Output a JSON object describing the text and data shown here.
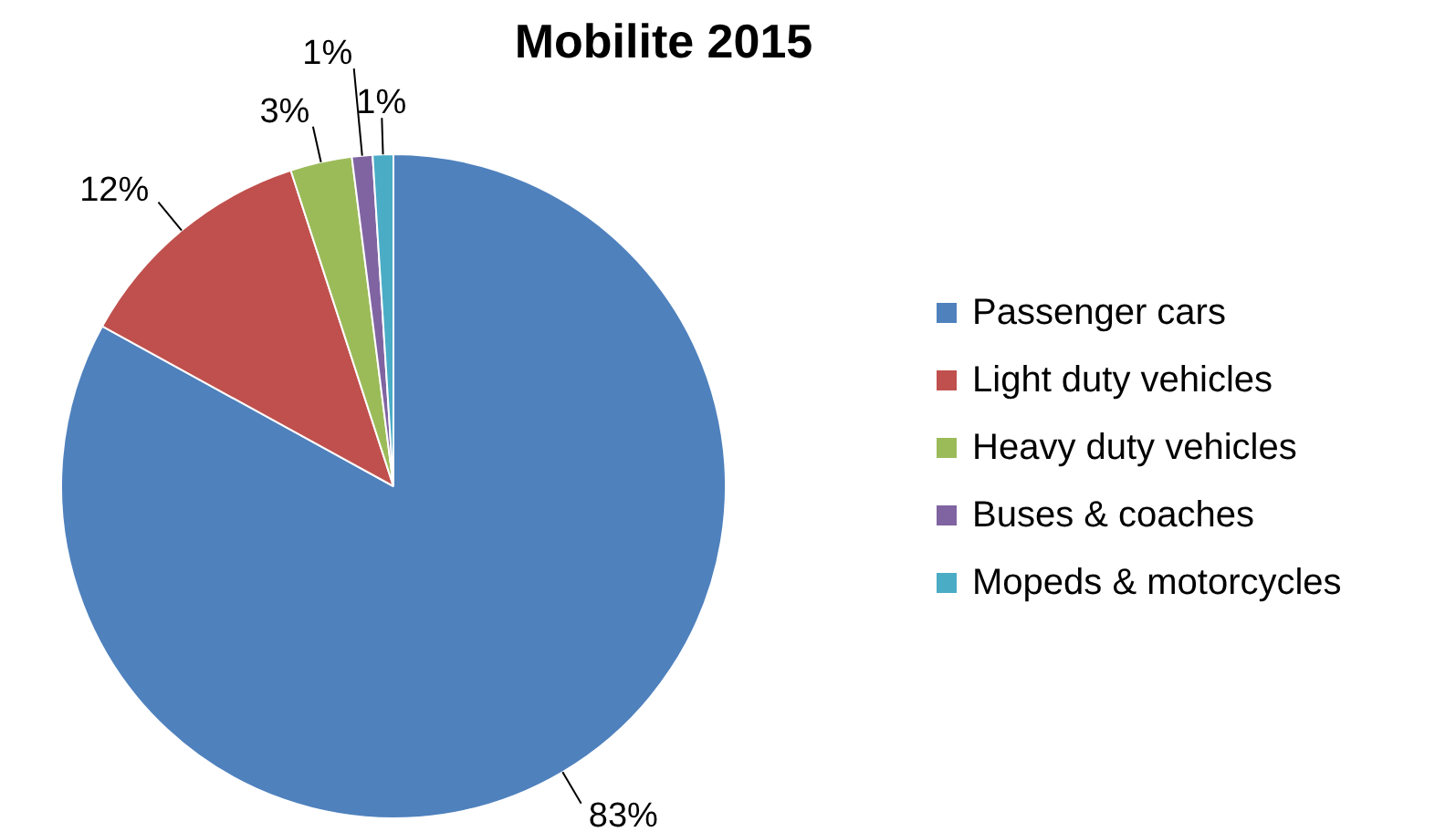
{
  "chart_data": {
    "type": "pie",
    "title": "Mobilite 2015",
    "categories": [
      "Passenger cars",
      "Light duty vehicles",
      "Heavy duty vehicles",
      "Buses & coaches",
      "Mopeds & motorcycles"
    ],
    "values": [
      83,
      12,
      3,
      1,
      1
    ],
    "colors": [
      "#4f81bd",
      "#c0504d",
      "#9bbb59",
      "#8064a2",
      "#4bacc6"
    ],
    "value_labels": [
      "83%",
      "12%",
      "3%",
      "1%",
      "1%"
    ],
    "legend": "right"
  }
}
